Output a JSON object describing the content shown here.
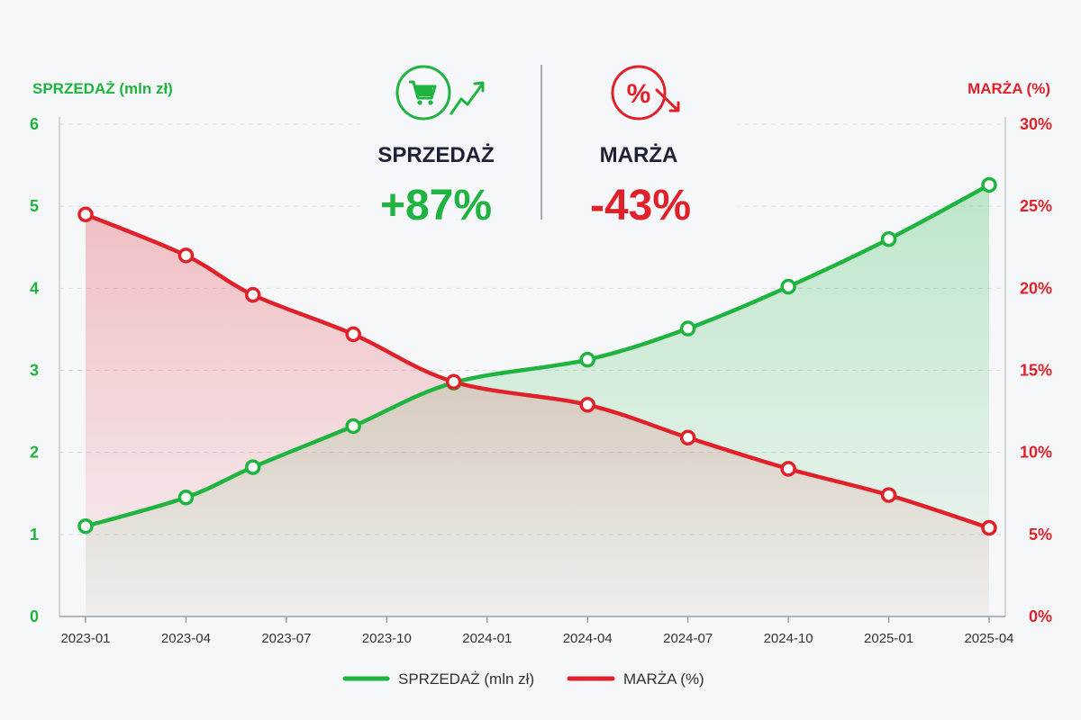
{
  "colors": {
    "sales": "#1fb43f",
    "margin": "#e0212a",
    "grid": "#d9dce2",
    "text": "#1e2235"
  },
  "left_axis_title": "SPRZEDAŻ (mln zł)",
  "right_axis_title": "MARŻA (%)",
  "kpis": [
    {
      "icon": "shopping-cart-trend-up-icon",
      "label": "SPRZEDAŻ",
      "value": "+87%"
    },
    {
      "icon": "percent-trend-down-icon",
      "label": "MARŻA",
      "value": "-43%"
    }
  ],
  "legend": [
    {
      "label": "SPRZEDAŻ (mln zł)"
    },
    {
      "label": "MARŻA (%)"
    }
  ],
  "chart_data": {
    "type": "line",
    "x_ticks": [
      "2023-01",
      "2023-04",
      "2023-07",
      "2023-10",
      "2024-01",
      "2024-04",
      "2024-07",
      "2024-10",
      "2025-01",
      "2025-04"
    ],
    "y_left": {
      "range": [
        0,
        6
      ],
      "ticks": [
        "0",
        "1",
        "2",
        "3",
        "4",
        "5",
        "6"
      ]
    },
    "y_right": {
      "range": [
        0,
        30
      ],
      "ticks": [
        "0%",
        "5%",
        "10%",
        "15%",
        "20%",
        "25%",
        "30%"
      ]
    },
    "grid": true,
    "legend_position": "bottom",
    "series": [
      {
        "name": "SPRZEDAŻ (mln zł)",
        "axis": "left",
        "fill": "area",
        "points": [
          [
            "2023-01",
            1.1
          ],
          [
            "2023-04",
            1.45
          ],
          [
            "2023-06",
            1.82
          ],
          [
            "2023-09",
            2.32
          ],
          [
            "2023-12",
            2.85
          ],
          [
            "2024-04",
            3.13
          ],
          [
            "2024-07",
            3.51
          ],
          [
            "2024-10",
            4.02
          ],
          [
            "2025-01",
            4.6
          ],
          [
            "2025-04",
            5.26
          ]
        ]
      },
      {
        "name": "MARŻA (%)",
        "axis": "right",
        "fill": "area",
        "points": [
          [
            "2023-01",
            24.5
          ],
          [
            "2023-04",
            22.0
          ],
          [
            "2023-06",
            19.6
          ],
          [
            "2023-09",
            17.2
          ],
          [
            "2023-12",
            14.3
          ],
          [
            "2024-04",
            12.9
          ],
          [
            "2024-07",
            10.9
          ],
          [
            "2024-10",
            9.0
          ],
          [
            "2025-01",
            7.4
          ],
          [
            "2025-04",
            5.4
          ]
        ]
      }
    ]
  }
}
